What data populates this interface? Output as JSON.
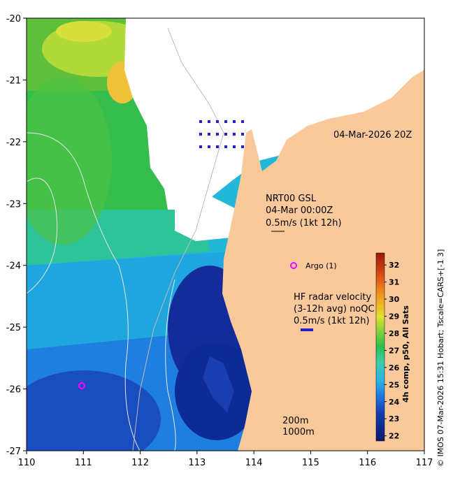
{
  "map": {
    "datetime_label": "04-Mar-2026 20Z",
    "x_ticks": [
      "110",
      "111",
      "112",
      "113",
      "114",
      "115",
      "116",
      "117"
    ],
    "y_ticks": [
      "-20",
      "-21",
      "-22",
      "-23",
      "-24",
      "-25",
      "-26",
      "-27"
    ],
    "x_range": [
      110,
      117
    ],
    "y_range": [
      -27,
      -20
    ]
  },
  "legend": {
    "gsl_title": "NRT00 GSL",
    "gsl_time": "04-Mar 00:00Z",
    "gsl_scale": "0.5m/s (1kt 12h)",
    "hf_title": "HF radar velocity",
    "hf_avg": "(3-12h avg) noQC",
    "hf_scale": "0.5m/s (1kt 12h)",
    "argo_label": "Argo (1)",
    "depth_200": "200m",
    "depth_1000": "1000m"
  },
  "colorbar": {
    "title": "4h comp, p50, All Sats",
    "ticks": [
      "32",
      "31",
      "30",
      "29",
      "28",
      "27",
      "26",
      "25",
      "24",
      "23",
      "22"
    ],
    "range": [
      21.7,
      32.7
    ]
  },
  "credit": "© IMOS 07-Mar-2026 15:31 Hobart; Tscale=CARS+[-1 3]",
  "colors": {
    "land": "#f9c89b",
    "cloud": "#ffffff",
    "argo": "#ff00ff",
    "hf_vector": "#2222cc"
  }
}
